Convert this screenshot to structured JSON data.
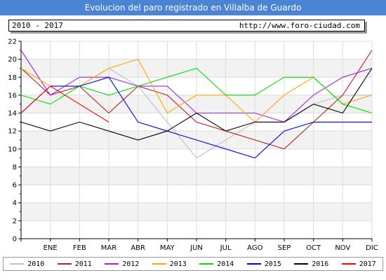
{
  "header": {
    "title": "Evolucion del paro registrado en Villalba de Guardo",
    "period": "2010 - 2017",
    "url": "http://www.foro-ciudad.com"
  },
  "chart_data": {
    "type": "line",
    "title": "Evolucion del paro registrado en Villalba de Guardo",
    "categories": [
      "",
      "ENE",
      "FEB",
      "MAR",
      "ABR",
      "MAY",
      "JUN",
      "JUL",
      "AGO",
      "SEP",
      "OCT",
      "NOV",
      "DIC"
    ],
    "yticks": [
      "0",
      "2",
      "4",
      "6",
      "8",
      "10",
      "12",
      "14",
      "16",
      "18",
      "20",
      "22"
    ],
    "ylim": [
      0,
      22
    ],
    "grid": true,
    "legend_position": "bottom",
    "series": [
      {
        "name": "2010",
        "color": "#c0c0c0",
        "values": [
          21,
          16,
          17,
          19,
          17,
          13,
          9,
          11,
          13,
          13,
          15,
          16,
          16
        ]
      },
      {
        "name": "2011",
        "color": "#b22222",
        "values": [
          19,
          16,
          17,
          14,
          17,
          16,
          13,
          12,
          11,
          10,
          13,
          16,
          21
        ]
      },
      {
        "name": "2012",
        "color": "#a020f0",
        "values": [
          21,
          16,
          18,
          18,
          17,
          17,
          14,
          14,
          14,
          13,
          16,
          18,
          19
        ]
      },
      {
        "name": "2013",
        "color": "#ffa500",
        "values": [
          19,
          17,
          17,
          19,
          20,
          14,
          16,
          16,
          13,
          16,
          18,
          15,
          16
        ]
      },
      {
        "name": "2014",
        "color": "#00e000",
        "values": [
          16,
          15,
          17,
          16,
          17,
          18,
          19,
          16,
          16,
          18,
          18,
          15,
          14
        ]
      },
      {
        "name": "2015",
        "color": "#0000ee",
        "values": [
          14,
          17,
          17,
          18,
          13,
          12,
          11,
          10,
          9,
          12,
          13,
          13,
          13
        ]
      },
      {
        "name": "2016",
        "color": "#000000",
        "values": [
          13,
          12,
          13,
          12,
          11,
          12,
          14,
          12,
          13,
          13,
          15,
          14,
          19
        ]
      },
      {
        "name": "2017",
        "color": "#ff0000",
        "values": [
          14,
          17,
          15,
          13,
          null,
          null,
          null,
          null,
          null,
          null,
          null,
          null,
          null
        ]
      }
    ]
  }
}
